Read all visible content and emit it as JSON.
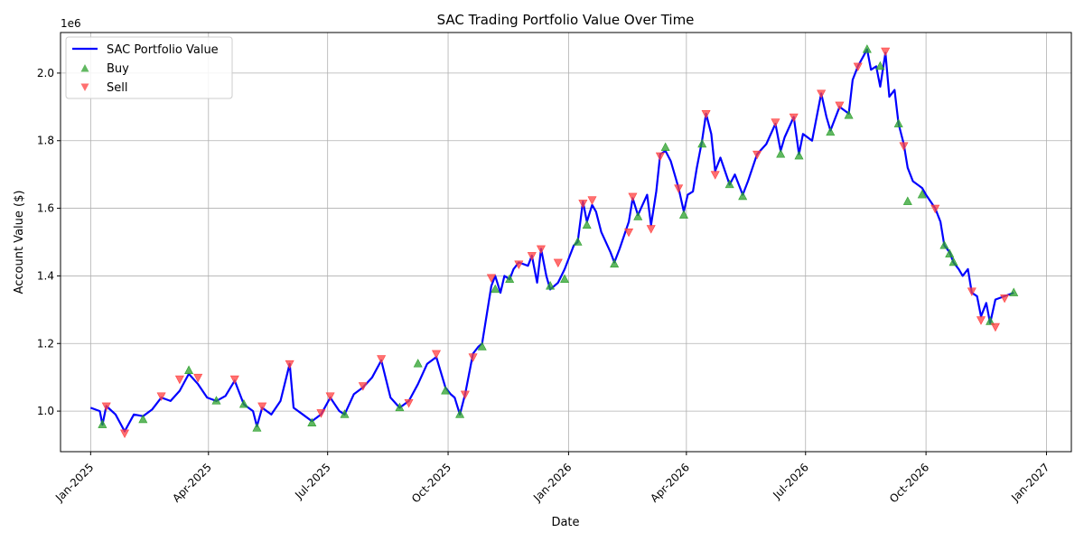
{
  "chart_data": {
    "type": "line",
    "title": "SAC Trading Portfolio Value Over Time",
    "xlabel": "Date",
    "ylabel": "Account Value ($)",
    "y_offset_label": "1e6",
    "grid": true,
    "legend_position": "top-left",
    "xlim": [
      "2024-12-09",
      "2027-01-20"
    ],
    "ylim": [
      880000,
      2120000
    ],
    "x_ticks": [
      {
        "date": "2025-01-01",
        "label": "Jan-2025"
      },
      {
        "date": "2025-04-01",
        "label": "Apr-2025"
      },
      {
        "date": "2025-07-01",
        "label": "Jul-2025"
      },
      {
        "date": "2025-10-01",
        "label": "Oct-2025"
      },
      {
        "date": "2026-01-01",
        "label": "Jan-2026"
      },
      {
        "date": "2026-04-01",
        "label": "Apr-2026"
      },
      {
        "date": "2026-07-01",
        "label": "Jul-2026"
      },
      {
        "date": "2026-10-01",
        "label": "Oct-2026"
      },
      {
        "date": "2027-01-01",
        "label": "Jan-2027"
      }
    ],
    "y_ticks": [
      {
        "value": 1000000,
        "label": "1.0"
      },
      {
        "value": 1200000,
        "label": "1.2"
      },
      {
        "value": 1400000,
        "label": "1.4"
      },
      {
        "value": 1600000,
        "label": "1.6"
      },
      {
        "value": 1800000,
        "label": "1.8"
      },
      {
        "value": 2000000,
        "label": "2.0"
      }
    ],
    "series": [
      {
        "name": "SAC Portfolio Value",
        "color": "#0000ff",
        "points": [
          [
            "2025-01-01",
            1010000
          ],
          [
            "2025-01-08",
            1000000
          ],
          [
            "2025-01-10",
            960000
          ],
          [
            "2025-01-13",
            1015000
          ],
          [
            "2025-01-20",
            990000
          ],
          [
            "2025-01-27",
            940000
          ],
          [
            "2025-02-03",
            990000
          ],
          [
            "2025-02-10",
            985000
          ],
          [
            "2025-02-17",
            1005000
          ],
          [
            "2025-02-24",
            1040000
          ],
          [
            "2025-03-03",
            1030000
          ],
          [
            "2025-03-10",
            1060000
          ],
          [
            "2025-03-17",
            1110000
          ],
          [
            "2025-03-24",
            1080000
          ],
          [
            "2025-03-31",
            1040000
          ],
          [
            "2025-04-07",
            1030000
          ],
          [
            "2025-04-14",
            1045000
          ],
          [
            "2025-04-21",
            1090000
          ],
          [
            "2025-04-28",
            1020000
          ],
          [
            "2025-05-05",
            1000000
          ],
          [
            "2025-05-08",
            955000
          ],
          [
            "2025-05-12",
            1010000
          ],
          [
            "2025-05-19",
            990000
          ],
          [
            "2025-05-26",
            1030000
          ],
          [
            "2025-06-02",
            1140000
          ],
          [
            "2025-06-05",
            1010000
          ],
          [
            "2025-06-12",
            990000
          ],
          [
            "2025-06-19",
            970000
          ],
          [
            "2025-06-26",
            990000
          ],
          [
            "2025-07-03",
            1040000
          ],
          [
            "2025-07-10",
            1000000
          ],
          [
            "2025-07-14",
            990000
          ],
          [
            "2025-07-21",
            1050000
          ],
          [
            "2025-07-28",
            1070000
          ],
          [
            "2025-08-04",
            1100000
          ],
          [
            "2025-08-11",
            1150000
          ],
          [
            "2025-08-18",
            1040000
          ],
          [
            "2025-08-25",
            1010000
          ],
          [
            "2025-09-01",
            1030000
          ],
          [
            "2025-09-08",
            1080000
          ],
          [
            "2025-09-15",
            1140000
          ],
          [
            "2025-09-22",
            1160000
          ],
          [
            "2025-09-29",
            1070000
          ],
          [
            "2025-10-03",
            1050000
          ],
          [
            "2025-10-06",
            1040000
          ],
          [
            "2025-10-10",
            990000
          ],
          [
            "2025-10-14",
            1050000
          ],
          [
            "2025-10-20",
            1170000
          ],
          [
            "2025-10-24",
            1190000
          ],
          [
            "2025-10-27",
            1200000
          ],
          [
            "2025-11-03",
            1370000
          ],
          [
            "2025-11-06",
            1400000
          ],
          [
            "2025-11-10",
            1350000
          ],
          [
            "2025-11-13",
            1400000
          ],
          [
            "2025-11-17",
            1390000
          ],
          [
            "2025-11-20",
            1420000
          ],
          [
            "2025-11-24",
            1440000
          ],
          [
            "2025-12-01",
            1430000
          ],
          [
            "2025-12-04",
            1460000
          ],
          [
            "2025-12-08",
            1380000
          ],
          [
            "2025-12-11",
            1480000
          ],
          [
            "2025-12-15",
            1400000
          ],
          [
            "2025-12-18",
            1360000
          ],
          [
            "2025-12-24",
            1380000
          ],
          [
            "2025-12-29",
            1420000
          ],
          [
            "2026-01-05",
            1490000
          ],
          [
            "2026-01-08",
            1500000
          ],
          [
            "2026-01-12",
            1620000
          ],
          [
            "2026-01-15",
            1560000
          ],
          [
            "2026-01-19",
            1610000
          ],
          [
            "2026-01-22",
            1590000
          ],
          [
            "2026-01-26",
            1530000
          ],
          [
            "2026-02-02",
            1470000
          ],
          [
            "2026-02-05",
            1440000
          ],
          [
            "2026-02-09",
            1480000
          ],
          [
            "2026-02-16",
            1560000
          ],
          [
            "2026-02-19",
            1630000
          ],
          [
            "2026-02-23",
            1580000
          ],
          [
            "2026-03-02",
            1640000
          ],
          [
            "2026-03-05",
            1550000
          ],
          [
            "2026-03-09",
            1650000
          ],
          [
            "2026-03-12",
            1760000
          ],
          [
            "2026-03-16",
            1770000
          ],
          [
            "2026-03-20",
            1740000
          ],
          [
            "2026-03-26",
            1660000
          ],
          [
            "2026-03-30",
            1590000
          ],
          [
            "2026-04-02",
            1640000
          ],
          [
            "2026-04-06",
            1650000
          ],
          [
            "2026-04-09",
            1720000
          ],
          [
            "2026-04-13",
            1800000
          ],
          [
            "2026-04-16",
            1880000
          ],
          [
            "2026-04-20",
            1820000
          ],
          [
            "2026-04-23",
            1710000
          ],
          [
            "2026-04-27",
            1750000
          ],
          [
            "2026-05-04",
            1670000
          ],
          [
            "2026-05-08",
            1700000
          ],
          [
            "2026-05-14",
            1640000
          ],
          [
            "2026-05-18",
            1680000
          ],
          [
            "2026-05-25",
            1760000
          ],
          [
            "2026-06-01",
            1790000
          ],
          [
            "2026-06-08",
            1850000
          ],
          [
            "2026-06-12",
            1770000
          ],
          [
            "2026-06-15",
            1810000
          ],
          [
            "2026-06-22",
            1870000
          ],
          [
            "2026-06-26",
            1760000
          ],
          [
            "2026-06-29",
            1820000
          ],
          [
            "2026-07-06",
            1800000
          ],
          [
            "2026-07-13",
            1940000
          ],
          [
            "2026-07-17",
            1870000
          ],
          [
            "2026-07-20",
            1830000
          ],
          [
            "2026-07-27",
            1900000
          ],
          [
            "2026-08-03",
            1880000
          ],
          [
            "2026-08-06",
            1980000
          ],
          [
            "2026-08-10",
            2020000
          ],
          [
            "2026-08-17",
            2070000
          ],
          [
            "2026-08-20",
            2010000
          ],
          [
            "2026-08-24",
            2020000
          ],
          [
            "2026-08-27",
            1960000
          ],
          [
            "2026-08-31",
            2060000
          ],
          [
            "2026-09-03",
            1930000
          ],
          [
            "2026-09-07",
            1950000
          ],
          [
            "2026-09-10",
            1850000
          ],
          [
            "2026-09-14",
            1790000
          ],
          [
            "2026-09-17",
            1720000
          ],
          [
            "2026-09-21",
            1680000
          ],
          [
            "2026-09-28",
            1660000
          ],
          [
            "2026-10-01",
            1640000
          ],
          [
            "2026-10-08",
            1600000
          ],
          [
            "2026-10-12",
            1560000
          ],
          [
            "2026-10-15",
            1490000
          ],
          [
            "2026-10-19",
            1470000
          ],
          [
            "2026-10-22",
            1440000
          ],
          [
            "2026-10-26",
            1420000
          ],
          [
            "2026-10-29",
            1400000
          ],
          [
            "2026-11-02",
            1420000
          ],
          [
            "2026-11-05",
            1350000
          ],
          [
            "2026-11-09",
            1340000
          ],
          [
            "2026-11-12",
            1280000
          ],
          [
            "2026-11-16",
            1320000
          ],
          [
            "2026-11-19",
            1260000
          ],
          [
            "2026-11-23",
            1330000
          ],
          [
            "2026-11-30",
            1340000
          ],
          [
            "2026-12-07",
            1350000
          ]
        ]
      },
      {
        "name": "Buy",
        "marker": "triangle-up",
        "color": "#2ca02c",
        "points": [
          [
            "2025-01-10",
            960000
          ],
          [
            "2025-02-10",
            975000
          ],
          [
            "2025-03-17",
            1120000
          ],
          [
            "2025-04-07",
            1030000
          ],
          [
            "2025-04-28",
            1020000
          ],
          [
            "2025-05-08",
            950000
          ],
          [
            "2025-06-19",
            965000
          ],
          [
            "2025-07-14",
            990000
          ],
          [
            "2025-08-25",
            1010000
          ],
          [
            "2025-09-08",
            1140000
          ],
          [
            "2025-09-29",
            1060000
          ],
          [
            "2025-10-10",
            990000
          ],
          [
            "2025-10-27",
            1190000
          ],
          [
            "2025-11-06",
            1360000
          ],
          [
            "2025-11-17",
            1390000
          ],
          [
            "2025-12-18",
            1370000
          ],
          [
            "2025-12-29",
            1390000
          ],
          [
            "2026-01-08",
            1500000
          ],
          [
            "2026-01-15",
            1550000
          ],
          [
            "2026-02-05",
            1435000
          ],
          [
            "2026-02-23",
            1575000
          ],
          [
            "2026-03-16",
            1780000
          ],
          [
            "2026-03-30",
            1580000
          ],
          [
            "2026-04-13",
            1790000
          ],
          [
            "2026-05-04",
            1670000
          ],
          [
            "2026-05-14",
            1635000
          ],
          [
            "2026-06-12",
            1760000
          ],
          [
            "2026-06-26",
            1755000
          ],
          [
            "2026-07-20",
            1825000
          ],
          [
            "2026-08-03",
            1875000
          ],
          [
            "2026-08-17",
            2070000
          ],
          [
            "2026-08-27",
            2020000
          ],
          [
            "2026-09-10",
            1850000
          ],
          [
            "2026-09-17",
            1620000
          ],
          [
            "2026-09-28",
            1640000
          ],
          [
            "2026-10-15",
            1490000
          ],
          [
            "2026-10-19",
            1465000
          ],
          [
            "2026-10-22",
            1440000
          ],
          [
            "2026-11-19",
            1265000
          ],
          [
            "2026-12-07",
            1350000
          ]
        ]
      },
      {
        "name": "Sell",
        "marker": "triangle-down",
        "color": "#ff4040",
        "points": [
          [
            "2025-01-13",
            1015000
          ],
          [
            "2025-01-27",
            935000
          ],
          [
            "2025-02-24",
            1045000
          ],
          [
            "2025-03-10",
            1095000
          ],
          [
            "2025-03-24",
            1100000
          ],
          [
            "2025-04-21",
            1095000
          ],
          [
            "2025-05-12",
            1015000
          ],
          [
            "2025-06-02",
            1140000
          ],
          [
            "2025-06-26",
            995000
          ],
          [
            "2025-07-03",
            1045000
          ],
          [
            "2025-07-28",
            1075000
          ],
          [
            "2025-08-11",
            1155000
          ],
          [
            "2025-09-01",
            1025000
          ],
          [
            "2025-09-22",
            1170000
          ],
          [
            "2025-10-14",
            1050000
          ],
          [
            "2025-10-20",
            1160000
          ],
          [
            "2025-11-03",
            1395000
          ],
          [
            "2025-11-24",
            1435000
          ],
          [
            "2025-12-04",
            1460000
          ],
          [
            "2025-12-11",
            1480000
          ],
          [
            "2025-12-24",
            1440000
          ],
          [
            "2026-01-12",
            1615000
          ],
          [
            "2026-01-19",
            1625000
          ],
          [
            "2026-02-16",
            1530000
          ],
          [
            "2026-02-19",
            1635000
          ],
          [
            "2026-03-05",
            1540000
          ],
          [
            "2026-03-12",
            1755000
          ],
          [
            "2026-03-26",
            1660000
          ],
          [
            "2026-04-16",
            1880000
          ],
          [
            "2026-04-23",
            1700000
          ],
          [
            "2026-05-25",
            1760000
          ],
          [
            "2026-06-08",
            1855000
          ],
          [
            "2026-06-22",
            1870000
          ],
          [
            "2026-07-13",
            1940000
          ],
          [
            "2026-07-27",
            1905000
          ],
          [
            "2026-08-10",
            2020000
          ],
          [
            "2026-08-31",
            2065000
          ],
          [
            "2026-09-14",
            1785000
          ],
          [
            "2026-10-08",
            1600000
          ],
          [
            "2026-11-05",
            1355000
          ],
          [
            "2026-11-12",
            1270000
          ],
          [
            "2026-11-23",
            1250000
          ],
          [
            "2026-11-30",
            1335000
          ]
        ]
      }
    ]
  }
}
